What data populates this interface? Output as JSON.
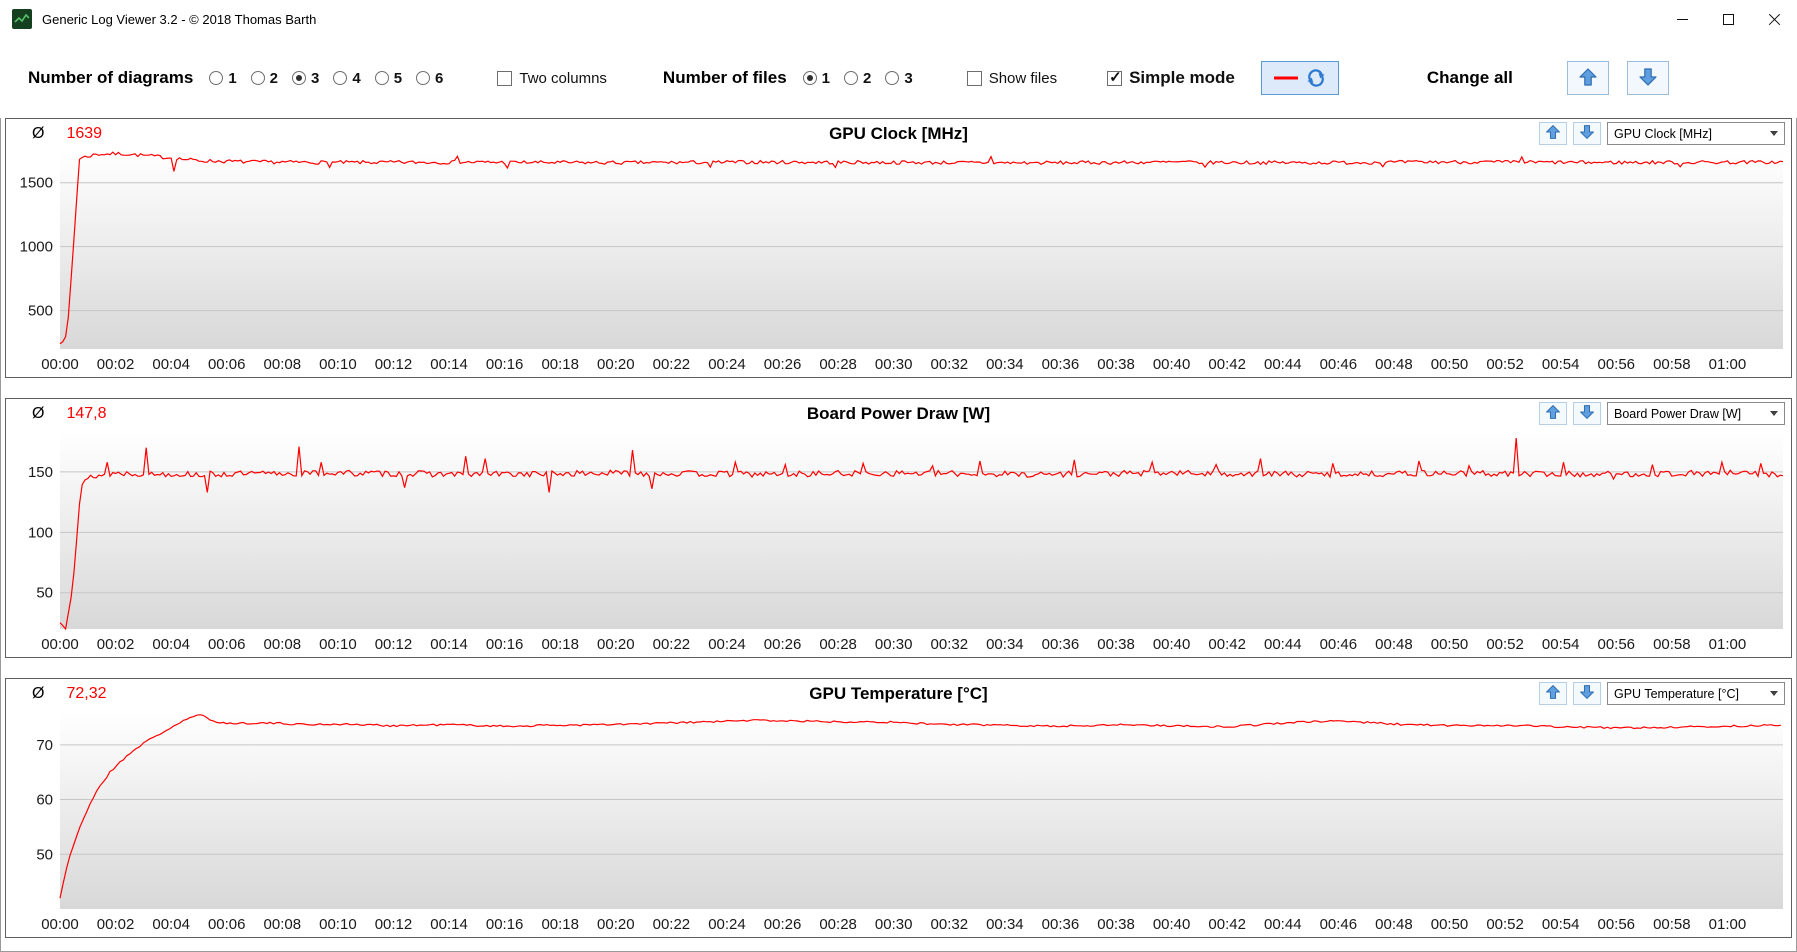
{
  "window": {
    "title": "Generic Log Viewer 3.2 - © 2018 Thomas Barth"
  },
  "titlebar": {
    "icons": [
      "app-logo",
      "minimize",
      "maximize",
      "close"
    ]
  },
  "toolbar": {
    "diagrams_label": "Number of diagrams",
    "diagram_options": [
      "1",
      "2",
      "3",
      "4",
      "5",
      "6"
    ],
    "diagrams_selected": "3",
    "two_columns_label": "Two columns",
    "two_columns_checked": false,
    "files_label": "Number of files",
    "file_options": [
      "1",
      "2",
      "3"
    ],
    "files_selected": "1",
    "show_files_label": "Show files",
    "show_files_checked": false,
    "simple_mode_label": "Simple mode",
    "simple_mode_checked": true,
    "change_all_label": "Change all",
    "icons": {
      "line_refresh": "red-line-with-refresh-arrows",
      "up": "up-arrow",
      "down": "down-arrow"
    }
  },
  "charts_meta": [
    {
      "avg_symbol": "Ø",
      "avg_value": "1639",
      "dropdown_value": "GPU Clock [MHz]"
    },
    {
      "avg_symbol": "Ø",
      "avg_value": "147,8",
      "dropdown_value": "Board Power Draw [W]"
    },
    {
      "avg_symbol": "Ø",
      "avg_value": "72,32",
      "dropdown_value": "GPU Temperature [°C]"
    }
  ],
  "chart_data": [
    {
      "type": "line",
      "title": "GPU Clock [MHz]",
      "color": "#ff0000",
      "grid": "horizontal",
      "legend": "none",
      "xlim": [
        0,
        62
      ],
      "ylim": [
        200,
        1740
      ],
      "y_ticks": [
        500,
        1000,
        1500
      ],
      "x_tick_step": 2,
      "x_tick_labels": [
        "00:00",
        "00:02",
        "00:04",
        "00:06",
        "00:08",
        "00:10",
        "00:12",
        "00:14",
        "00:16",
        "00:18",
        "00:20",
        "00:22",
        "00:24",
        "00:26",
        "00:28",
        "00:30",
        "00:32",
        "00:34",
        "00:36",
        "00:38",
        "00:40",
        "00:42",
        "00:44",
        "00:46",
        "00:48",
        "00:50",
        "00:52",
        "00:54",
        "00:56",
        "00:58",
        "01:00"
      ],
      "sample_step": 0.1,
      "noise": 14,
      "seed": 7,
      "keypoints": [
        [
          0,
          255
        ],
        [
          0.25,
          290
        ],
        [
          0.45,
          900
        ],
        [
          0.7,
          1690
        ],
        [
          1.3,
          1722
        ],
        [
          2.2,
          1727
        ],
        [
          3.5,
          1705
        ],
        [
          5,
          1672
        ],
        [
          7,
          1662
        ],
        [
          10,
          1658
        ],
        [
          15,
          1660
        ],
        [
          20,
          1656
        ],
        [
          25,
          1661
        ],
        [
          30,
          1658
        ],
        [
          35,
          1655
        ],
        [
          40,
          1660
        ],
        [
          45,
          1656
        ],
        [
          50,
          1662
        ],
        [
          55,
          1658
        ],
        [
          60,
          1660
        ],
        [
          62,
          1660
        ]
      ],
      "spikes": [
        [
          4.1,
          1588
        ],
        [
          9.7,
          1620
        ],
        [
          14.3,
          1706
        ],
        [
          16.1,
          1615
        ],
        [
          23.4,
          1622
        ],
        [
          27.9,
          1620
        ],
        [
          33.5,
          1704
        ],
        [
          41.2,
          1622
        ],
        [
          47.6,
          1625
        ],
        [
          52.6,
          1702
        ],
        [
          58.3,
          1624
        ]
      ]
    },
    {
      "type": "line",
      "title": "Board Power Draw [W]",
      "color": "#ff0000",
      "grid": "horizontal",
      "legend": "none",
      "xlim": [
        0,
        62
      ],
      "ylim": [
        20,
        183
      ],
      "y_ticks": [
        50,
        100,
        150
      ],
      "x_tick_step": 2,
      "x_tick_labels": [
        "00:00",
        "00:02",
        "00:04",
        "00:06",
        "00:08",
        "00:10",
        "00:12",
        "00:14",
        "00:16",
        "00:18",
        "00:20",
        "00:22",
        "00:24",
        "00:26",
        "00:28",
        "00:30",
        "00:32",
        "00:34",
        "00:36",
        "00:38",
        "00:40",
        "00:42",
        "00:44",
        "00:46",
        "00:48",
        "00:50",
        "00:52",
        "00:54",
        "00:56",
        "00:58",
        "01:00"
      ],
      "sample_step": 0.1,
      "noise": 2.5,
      "seed": 13,
      "keypoints": [
        [
          0,
          25
        ],
        [
          0.2,
          22
        ],
        [
          0.45,
          55
        ],
        [
          0.75,
          138
        ],
        [
          1.1,
          146
        ],
        [
          2,
          149
        ],
        [
          5,
          148
        ],
        [
          10,
          149
        ],
        [
          15,
          148
        ],
        [
          20,
          149
        ],
        [
          25,
          148
        ],
        [
          30,
          149
        ],
        [
          35,
          148
        ],
        [
          40,
          149
        ],
        [
          45,
          148
        ],
        [
          50,
          149
        ],
        [
          55,
          148
        ],
        [
          60,
          149
        ],
        [
          62,
          148
        ]
      ],
      "spikes": [
        [
          1.7,
          158
        ],
        [
          3.1,
          170
        ],
        [
          5.3,
          133
        ],
        [
          8.6,
          171
        ],
        [
          9.4,
          158
        ],
        [
          12.4,
          137
        ],
        [
          14.6,
          163
        ],
        [
          15.3,
          161
        ],
        [
          17.6,
          133
        ],
        [
          20.6,
          168
        ],
        [
          21.3,
          136
        ],
        [
          24.3,
          158
        ],
        [
          26.1,
          156
        ],
        [
          28.9,
          157
        ],
        [
          31.4,
          155
        ],
        [
          33.1,
          159
        ],
        [
          36.5,
          160
        ],
        [
          39.3,
          158
        ],
        [
          41.6,
          156
        ],
        [
          43.2,
          161
        ],
        [
          45.8,
          157
        ],
        [
          48.9,
          159
        ],
        [
          50.7,
          155
        ],
        [
          52.4,
          178
        ],
        [
          54.1,
          158
        ],
        [
          55.9,
          144
        ],
        [
          57.3,
          156
        ],
        [
          59.8,
          158
        ],
        [
          61.2,
          157
        ]
      ]
    },
    {
      "type": "line",
      "title": "GPU Temperature [°C]",
      "color": "#ff0000",
      "grid": "horizontal",
      "legend": "none",
      "xlim": [
        0,
        62
      ],
      "ylim": [
        40,
        76
      ],
      "y_ticks": [
        50,
        60,
        70
      ],
      "x_tick_step": 2,
      "x_tick_labels": [
        "00:00",
        "00:02",
        "00:04",
        "00:06",
        "00:08",
        "00:10",
        "00:12",
        "00:14",
        "00:16",
        "00:18",
        "00:20",
        "00:22",
        "00:24",
        "00:26",
        "00:28",
        "00:30",
        "00:32",
        "00:34",
        "00:36",
        "00:38",
        "00:40",
        "00:42",
        "00:44",
        "00:46",
        "00:48",
        "00:50",
        "00:52",
        "00:54",
        "00:56",
        "00:58",
        "01:00"
      ],
      "sample_step": 0.12,
      "noise": 0.18,
      "seed": 21,
      "keypoints": [
        [
          0,
          42
        ],
        [
          0.3,
          49
        ],
        [
          0.8,
          56
        ],
        [
          1.3,
          61.5
        ],
        [
          1.8,
          65
        ],
        [
          2.4,
          68
        ],
        [
          3,
          70.3
        ],
        [
          3.7,
          72.3
        ],
        [
          4.3,
          74
        ],
        [
          4.8,
          75.2
        ],
        [
          5.1,
          75.4
        ],
        [
          5.5,
          74.4
        ],
        [
          6,
          73.9
        ],
        [
          7,
          74
        ],
        [
          8,
          73.9
        ],
        [
          9,
          73.7
        ],
        [
          10,
          73.8
        ],
        [
          12,
          73.5
        ],
        [
          14,
          73.7
        ],
        [
          16,
          73.4
        ],
        [
          18,
          73.6
        ],
        [
          20,
          73.7
        ],
        [
          22,
          74
        ],
        [
          24,
          74.3
        ],
        [
          25,
          74.5
        ],
        [
          26,
          74.4
        ],
        [
          27,
          74.3
        ],
        [
          28,
          74.2
        ],
        [
          29,
          74.3
        ],
        [
          30,
          74.1
        ],
        [
          31,
          73.9
        ],
        [
          32,
          73.7
        ],
        [
          34,
          73.6
        ],
        [
          36,
          73.4
        ],
        [
          38,
          73.7
        ],
        [
          40,
          73.5
        ],
        [
          42,
          73.3
        ],
        [
          44,
          74
        ],
        [
          45,
          74.2
        ],
        [
          46,
          74.4
        ],
        [
          47,
          74.1
        ],
        [
          48,
          73.8
        ],
        [
          50,
          73.5
        ],
        [
          52,
          73.6
        ],
        [
          54,
          73.3
        ],
        [
          56,
          73.1
        ],
        [
          58,
          73.2
        ],
        [
          60,
          73.4
        ],
        [
          62,
          73.6
        ]
      ],
      "spikes": []
    }
  ]
}
